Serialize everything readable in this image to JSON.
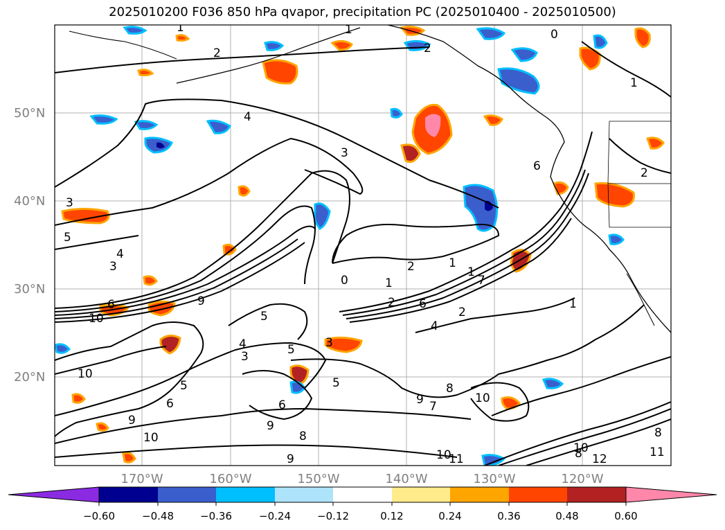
{
  "title": "2025010200 F036 850 hPa qvapor, precipitation PC (2025010400 - 2025010500)",
  "lat_labels": [
    "50°N",
    "40°N",
    "30°N",
    "20°N"
  ],
  "lon_labels": [
    "170°W",
    "160°W",
    "150°W",
    "140°W",
    "130°W",
    "120°W"
  ],
  "colorbar": {
    "tick_labels": [
      "−0.60",
      "−0.48",
      "−0.36",
      "−0.24",
      "−0.12",
      "0.12",
      "0.24",
      "0.36",
      "0.48",
      "0.60"
    ],
    "colors": [
      "#8a2be2",
      "#000090",
      "#3a5fcd",
      "#00bfff",
      "#aee4fb",
      "#ffffff",
      "#ffeb8a",
      "#ffa500",
      "#ff4500",
      "#b22222",
      "#ff88aa"
    ]
  },
  "contour_labels": [
    "1",
    "1",
    "2",
    "2",
    "4",
    "3",
    "3",
    "5",
    "4",
    "3",
    "1",
    "2",
    "0",
    "1",
    "2",
    "6",
    "6",
    "9",
    "10",
    "5",
    "5",
    "3",
    "4",
    "3",
    "10",
    "5",
    "6",
    "6",
    "9",
    "5",
    "9",
    "8",
    "9",
    "10",
    "11",
    "12",
    "10",
    "11",
    "8",
    "1",
    "2",
    "1",
    "0",
    "1",
    "9",
    "7",
    "6",
    "4",
    "2",
    "7",
    "8",
    "10",
    "10",
    "8"
  ]
}
